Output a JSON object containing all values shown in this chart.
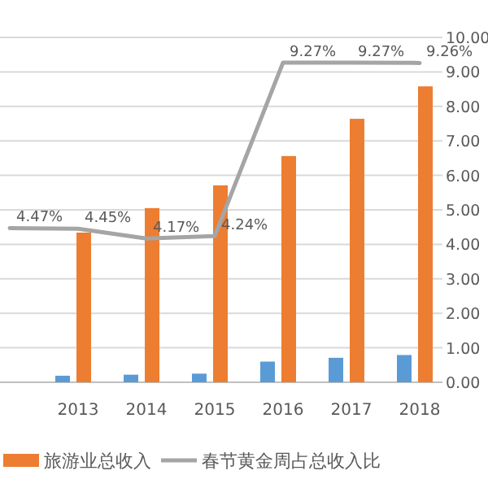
{
  "chart_data": {
    "type": "bar",
    "categories": [
      null,
      "2013",
      "2014",
      "2015",
      "2016",
      "2017",
      "2018"
    ],
    "series": [
      {
        "color": "#5b9bd5",
        "values": [
          null,
          0.19,
          0.22,
          0.25,
          0.6,
          0.71,
          0.79
        ]
      },
      {
        "name": "旅游业总收入",
        "color": "#ed7d31",
        "values": [
          null,
          4.34,
          5.05,
          5.71,
          6.56,
          7.64,
          8.58
        ]
      },
      {
        "name": "春节黄金周占总收入比",
        "type": "line",
        "color": "#a5a5a5",
        "values": [
          4.47,
          4.45,
          4.17,
          4.24,
          9.27,
          9.27,
          9.26
        ],
        "value_labels": [
          "4.47%",
          "4.45%",
          "4.17%",
          "4.24%",
          "9.27%",
          "9.27%",
          "9.26%"
        ]
      }
    ],
    "ylim": [
      0,
      10
    ],
    "yticks": [
      {
        "value": 0,
        "label": "0.00"
      },
      {
        "value": 1,
        "label": "1.00"
      },
      {
        "value": 2,
        "label": "2.00"
      },
      {
        "value": 3,
        "label": "3.00"
      },
      {
        "value": 4,
        "label": "4.00"
      },
      {
        "value": 5,
        "label": "5.00"
      },
      {
        "value": 6,
        "label": "6.00"
      },
      {
        "value": 7,
        "label": "7.00"
      },
      {
        "value": 8,
        "label": "8.00"
      },
      {
        "value": 9,
        "label": "9.00"
      },
      {
        "value": 10,
        "label": "10.00"
      }
    ],
    "grid": "y",
    "legend": "bottom"
  }
}
